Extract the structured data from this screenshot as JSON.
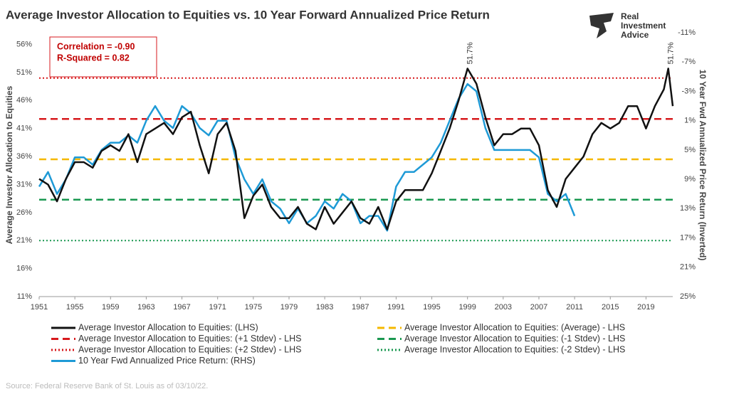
{
  "chart_data": {
    "type": "line",
    "title": "Average Investor Allocation to Equities vs. 10 Year Forward Annualized Price Return",
    "brand": [
      "Real",
      "Investment",
      "Advice"
    ],
    "stats": [
      "Correlation = -0.90",
      "R-Squared = 0.82"
    ],
    "y_label": "Average Investor Allocation to Equities",
    "y2_label": "10 Year Fwd Annualized Price Return (Inverted)",
    "source": "Source: Federal Reserve Bank of St. Louis as of 03/10/22.",
    "xlim": [
      1951,
      2022
    ],
    "xticks": [
      1951,
      1955,
      1959,
      1963,
      1967,
      1971,
      1975,
      1979,
      1983,
      1987,
      1991,
      1995,
      1999,
      2003,
      2007,
      2011,
      2015,
      2019
    ],
    "ylim": [
      11,
      58.1
    ],
    "yticks": [
      {
        "value": 11,
        "label": "11%"
      },
      {
        "value": 16,
        "label": "16%"
      },
      {
        "value": 21,
        "label": "21%"
      },
      {
        "value": 26,
        "label": "26%"
      },
      {
        "value": 31,
        "label": "31%"
      },
      {
        "value": 36,
        "label": "36%"
      },
      {
        "value": 41,
        "label": "41%"
      },
      {
        "value": 46,
        "label": "46%"
      },
      {
        "value": 51,
        "label": "51%"
      },
      {
        "value": 56,
        "label": "56%"
      }
    ],
    "y2lim": [
      -11,
      25
    ],
    "y2_inverted": true,
    "y2ticks": [
      {
        "value": -11,
        "label": "-11%"
      },
      {
        "value": -7,
        "label": "-7%"
      },
      {
        "value": -3,
        "label": "-3%"
      },
      {
        "value": 1,
        "label": "1%"
      },
      {
        "value": 5,
        "label": "5%"
      },
      {
        "value": 9,
        "label": "9%"
      },
      {
        "value": 13,
        "label": "13%"
      },
      {
        "value": 17,
        "label": "17%"
      },
      {
        "value": 21,
        "label": "21%"
      },
      {
        "value": 25,
        "label": "25%"
      }
    ],
    "x": [
      1951,
      1952,
      1953,
      1954,
      1955,
      1956,
      1957,
      1958,
      1959,
      1960,
      1961,
      1962,
      1963,
      1964,
      1965,
      1966,
      1967,
      1968,
      1969,
      1970,
      1971,
      1972,
      1973,
      1974,
      1975,
      1976,
      1977,
      1978,
      1979,
      1980,
      1981,
      1982,
      1983,
      1984,
      1985,
      1986,
      1987,
      1988,
      1989,
      1990,
      1991,
      1992,
      1993,
      1994,
      1995,
      1996,
      1997,
      1998,
      1999,
      2000,
      2001,
      2002,
      2003,
      2004,
      2005,
      2006,
      2007,
      2008,
      2009,
      2010,
      2011,
      2012,
      2013,
      2014,
      2015,
      2016,
      2017,
      2018,
      2019,
      2020,
      2021,
      2021.5,
      2022
    ],
    "series": [
      {
        "name": "Average Investor Allocation to Equities: (LHS)",
        "color": "#111111",
        "values": [
          32,
          31,
          28,
          32,
          35,
          35,
          34,
          37,
          38,
          37,
          40,
          35,
          40,
          41,
          42,
          40,
          43,
          44,
          38,
          33,
          40,
          42,
          37,
          25,
          29,
          31,
          27,
          25,
          25,
          27,
          24,
          23,
          27,
          24,
          26,
          28,
          25,
          24,
          27,
          23,
          28,
          30,
          30,
          30,
          33,
          37,
          41,
          46,
          51.7,
          49,
          43,
          38,
          40,
          40,
          41,
          41,
          38,
          30,
          27,
          32,
          34,
          36,
          40,
          42,
          41,
          42,
          45,
          45,
          41,
          45,
          48,
          51.7,
          45
        ]
      },
      {
        "name": "10 Year Fwd Annualized Price Return: (RHS)",
        "color": "#1e9ad6",
        "axis": "y2",
        "values": [
          10,
          8,
          11,
          9,
          6,
          6,
          7,
          5,
          4,
          4,
          3,
          4,
          1,
          -1,
          1,
          2,
          -1,
          0,
          2,
          3,
          1,
          1,
          6,
          9,
          11,
          9,
          12,
          13,
          15,
          13,
          15,
          14,
          12,
          13,
          11,
          12,
          15,
          14,
          14,
          16,
          10,
          8,
          8,
          7,
          6,
          4,
          1,
          -2,
          -4,
          -3,
          2,
          5,
          5,
          5,
          5,
          5,
          6,
          11,
          12,
          11,
          14,
          null,
          null,
          null,
          null,
          null,
          null,
          null,
          null,
          null,
          null,
          null,
          null
        ]
      }
    ],
    "hlines": [
      {
        "name": "Average Investor Allocation to Equities: (+1 Stdev) - LHS",
        "color": "#d7191c",
        "style": "dashed",
        "value": 42.7
      },
      {
        "name": "Average Investor Allocation to Equities: (+2 Stdev) - LHS",
        "color": "#d7191c",
        "style": "dotted",
        "value": 50.0
      },
      {
        "name": "Average Investor Allocation to Equities: (Average) - LHS",
        "color": "#f5b800",
        "style": "dashed",
        "value": 35.5
      },
      {
        "name": "Average Investor Allocation to Equities: (-1 Stdev) - LHS",
        "color": "#1a9850",
        "style": "dashed",
        "value": 28.3
      },
      {
        "name": "Average Investor Allocation to Equities: (-2 Stdev) - LHS",
        "color": "#1a9850",
        "style": "dotted",
        "value": 21.0
      }
    ],
    "annotations": [
      {
        "x": 1999,
        "y": 51.7,
        "label": "51.7%"
      },
      {
        "x": 2021.5,
        "y": 51.7,
        "label": "51.7%"
      }
    ]
  }
}
